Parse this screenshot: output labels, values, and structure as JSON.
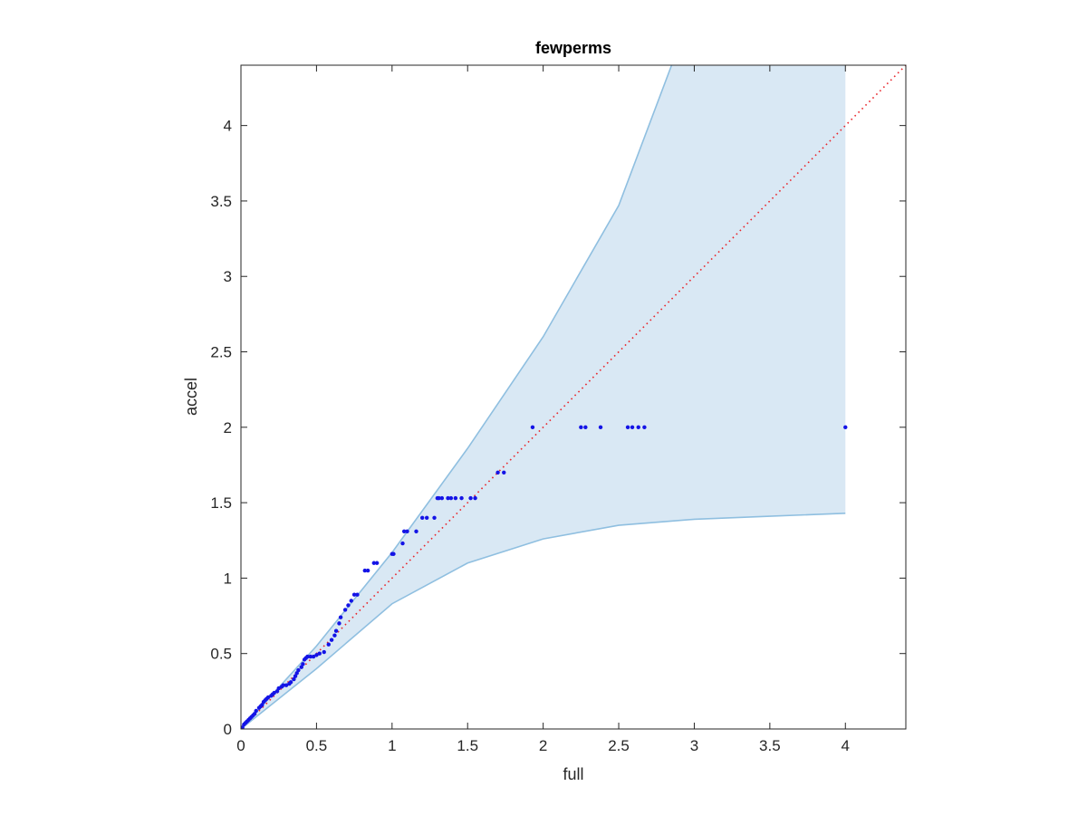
{
  "chart_data": {
    "type": "scatter",
    "title": "fewperms",
    "xlabel": "full",
    "ylabel": "accel",
    "xlim": [
      0,
      4.4
    ],
    "ylim": [
      0,
      4.4
    ],
    "xticks": [
      0,
      0.5,
      1,
      1.5,
      2,
      2.5,
      3,
      3.5,
      4
    ],
    "xtick_labels": [
      "0",
      "0.5",
      "1",
      "1.5",
      "2",
      "2.5",
      "3",
      "3.5",
      "4"
    ],
    "yticks": [
      0,
      0.5,
      1,
      1.5,
      2,
      2.5,
      3,
      3.5,
      4
    ],
    "ytick_labels": [
      "0",
      "0.5",
      "1",
      "1.5",
      "2",
      "2.5",
      "3",
      "3.5",
      "4"
    ],
    "grid": false,
    "box": true,
    "series": [
      {
        "kind": "band",
        "color": "#d9e8f4",
        "edge_color": "#8fbfe0",
        "upper": [
          [
            0,
            0
          ],
          [
            0.5,
            0.55
          ],
          [
            1,
            1.17
          ],
          [
            1.5,
            1.86
          ],
          [
            2,
            2.6
          ],
          [
            2.5,
            3.47
          ],
          [
            2.85,
            4.4
          ],
          [
            4,
            4.4
          ]
        ],
        "lower": [
          [
            0,
            0
          ],
          [
            0.5,
            0.4
          ],
          [
            1,
            0.83
          ],
          [
            1.5,
            1.1
          ],
          [
            2,
            1.26
          ],
          [
            2.5,
            1.35
          ],
          [
            3,
            1.39
          ],
          [
            3.5,
            1.41
          ],
          [
            4,
            1.43
          ]
        ]
      },
      {
        "kind": "reference",
        "color": "#e8262b",
        "style": "dotted",
        "points": [
          [
            0,
            0
          ],
          [
            4.4,
            4.4
          ]
        ]
      },
      {
        "kind": "points",
        "color": "#1414e6",
        "points": [
          [
            0,
            0
          ],
          [
            0.01,
            0.01
          ],
          [
            0.02,
            0.03
          ],
          [
            0.03,
            0.04
          ],
          [
            0.04,
            0.05
          ],
          [
            0.05,
            0.06
          ],
          [
            0.06,
            0.07
          ],
          [
            0.07,
            0.08
          ],
          [
            0.08,
            0.09
          ],
          [
            0.09,
            0.1
          ],
          [
            0.1,
            0.12
          ],
          [
            0.12,
            0.14
          ],
          [
            0.13,
            0.15
          ],
          [
            0.14,
            0.16
          ],
          [
            0.15,
            0.18
          ],
          [
            0.16,
            0.19
          ],
          [
            0.17,
            0.2
          ],
          [
            0.18,
            0.21
          ],
          [
            0.2,
            0.22
          ],
          [
            0.21,
            0.23
          ],
          [
            0.22,
            0.24
          ],
          [
            0.24,
            0.25
          ],
          [
            0.25,
            0.27
          ],
          [
            0.27,
            0.28
          ],
          [
            0.28,
            0.29
          ],
          [
            0.3,
            0.29
          ],
          [
            0.32,
            0.3
          ],
          [
            0.33,
            0.31
          ],
          [
            0.35,
            0.33
          ],
          [
            0.36,
            0.35
          ],
          [
            0.37,
            0.37
          ],
          [
            0.38,
            0.39
          ],
          [
            0.4,
            0.41
          ],
          [
            0.41,
            0.43
          ],
          [
            0.42,
            0.46
          ],
          [
            0.43,
            0.47
          ],
          [
            0.44,
            0.48
          ],
          [
            0.46,
            0.48
          ],
          [
            0.48,
            0.48
          ],
          [
            0.5,
            0.49
          ],
          [
            0.52,
            0.5
          ],
          [
            0.55,
            0.51
          ],
          [
            0.58,
            0.56
          ],
          [
            0.6,
            0.59
          ],
          [
            0.62,
            0.62
          ],
          [
            0.63,
            0.65
          ],
          [
            0.65,
            0.7
          ],
          [
            0.66,
            0.74
          ],
          [
            0.69,
            0.79
          ],
          [
            0.71,
            0.82
          ],
          [
            0.73,
            0.85
          ],
          [
            0.75,
            0.89
          ],
          [
            0.77,
            0.89
          ],
          [
            0.82,
            1.05
          ],
          [
            0.84,
            1.05
          ],
          [
            0.88,
            1.1
          ],
          [
            0.9,
            1.1
          ],
          [
            1.0,
            1.16
          ],
          [
            1.01,
            1.16
          ],
          [
            1.07,
            1.23
          ],
          [
            1.08,
            1.31
          ],
          [
            1.1,
            1.31
          ],
          [
            1.16,
            1.31
          ],
          [
            1.2,
            1.4
          ],
          [
            1.23,
            1.4
          ],
          [
            1.28,
            1.4
          ],
          [
            1.3,
            1.53
          ],
          [
            1.31,
            1.53
          ],
          [
            1.33,
            1.53
          ],
          [
            1.37,
            1.53
          ],
          [
            1.39,
            1.53
          ],
          [
            1.42,
            1.53
          ],
          [
            1.46,
            1.53
          ],
          [
            1.52,
            1.53
          ],
          [
            1.55,
            1.53
          ],
          [
            1.7,
            1.7
          ],
          [
            1.74,
            1.7
          ],
          [
            1.93,
            2
          ],
          [
            2.25,
            2
          ],
          [
            2.28,
            2
          ],
          [
            2.38,
            2
          ],
          [
            2.56,
            2
          ],
          [
            2.59,
            2
          ],
          [
            2.63,
            2
          ],
          [
            2.67,
            2
          ],
          [
            4,
            2
          ]
        ]
      }
    ]
  }
}
